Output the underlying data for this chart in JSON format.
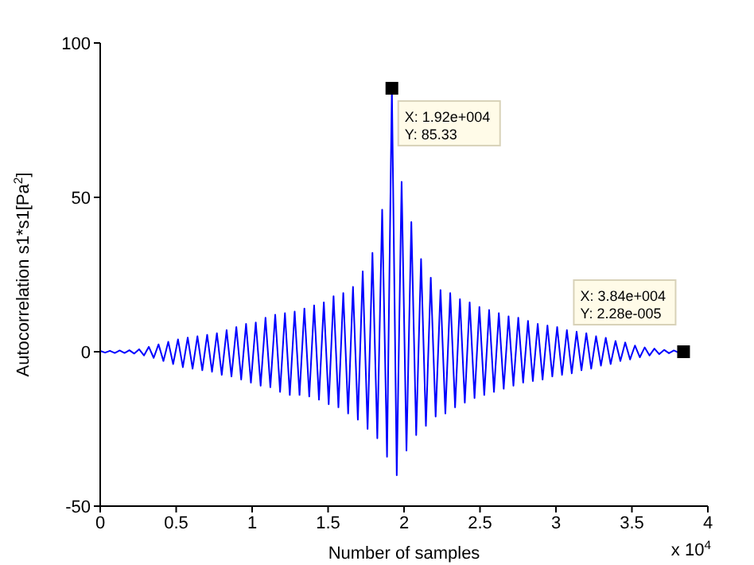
{
  "chart_data": {
    "type": "line",
    "xlabel": "Number of samples",
    "ylabel": "Autocorrelation s1*s1[Pa$^{2}$]",
    "xlim": [
      0,
      4
    ],
    "ylim": [
      -50,
      100
    ],
    "xticks": [
      0,
      0.5,
      1,
      1.5,
      2,
      2.5,
      3,
      3.5,
      4
    ],
    "yticks": [
      -50,
      0,
      50,
      100
    ],
    "grid": false,
    "legend": false,
    "marker": "none",
    "line_style": "solid",
    "annotations": [
      "x 10$^{4}$",
      {
        "text": "X: 1.92e+004\nY: 85.33",
        "x": 1.92,
        "y": 85.33
      },
      {
        "text": "X: 3.84e+004\nY: 2.28e-005",
        "x": 3.84,
        "y": 2.28e-05
      }
    ],
    "series": [
      {
        "color": "#0000ff",
        "x": [
          0,
          0.032,
          0.064,
          0.096,
          0.128,
          0.16,
          0.192,
          0.224,
          0.256,
          0.288,
          0.32,
          0.352,
          0.384,
          0.416,
          0.448,
          0.48,
          0.512,
          0.544,
          0.576,
          0.608,
          0.64,
          0.672,
          0.704,
          0.736,
          0.768,
          0.8,
          0.832,
          0.864,
          0.896,
          0.928,
          0.96,
          0.992,
          1.024,
          1.056,
          1.088,
          1.12,
          1.152,
          1.184,
          1.216,
          1.248,
          1.28,
          1.312,
          1.344,
          1.376,
          1.408,
          1.44,
          1.472,
          1.504,
          1.536,
          1.568,
          1.6,
          1.632,
          1.664,
          1.696,
          1.728,
          1.76,
          1.792,
          1.824,
          1.856,
          1.888,
          1.92,
          1.952,
          1.984,
          2.016,
          2.048,
          2.08,
          2.112,
          2.144,
          2.176,
          2.208,
          2.24,
          2.272,
          2.304,
          2.336,
          2.368,
          2.4,
          2.432,
          2.464,
          2.496,
          2.528,
          2.56,
          2.592,
          2.624,
          2.656,
          2.688,
          2.72,
          2.752,
          2.784,
          2.816,
          2.848,
          2.88,
          2.912,
          2.944,
          2.976,
          3.008,
          3.04,
          3.072,
          3.104,
          3.136,
          3.168,
          3.2,
          3.232,
          3.264,
          3.296,
          3.328,
          3.36,
          3.392,
          3.424,
          3.456,
          3.488,
          3.52,
          3.552,
          3.584,
          3.616,
          3.648,
          3.68,
          3.712,
          3.744,
          3.776,
          3.808,
          3.84
        ],
        "values": [
          0.3,
          -0.3,
          0.3,
          -0.4,
          0.4,
          -0.4,
          0.5,
          -0.6,
          0.8,
          -1.2,
          1.6,
          -2,
          2.4,
          -3,
          3.2,
          -4,
          4,
          -5,
          4.6,
          -5.5,
          5,
          -6,
          5.5,
          -6.5,
          6,
          -7.5,
          7,
          -8,
          8,
          -9,
          9,
          -10,
          9.5,
          -11,
          11,
          -11.5,
          12,
          -13,
          12.5,
          -14,
          13,
          -14,
          14,
          -14.5,
          15,
          -15.5,
          16,
          -17,
          18,
          -18,
          19,
          -20,
          21,
          -22,
          26,
          -25,
          32,
          -28,
          46,
          -34,
          85.33,
          -40,
          55,
          -32,
          42,
          -27,
          30,
          -24,
          24,
          -21,
          20,
          -20,
          19,
          -18,
          17,
          -16.5,
          16,
          -15,
          14.5,
          -14,
          13.5,
          -13,
          12.5,
          -12,
          11.5,
          -11,
          11,
          -10,
          10,
          -9.5,
          9,
          -9,
          8.5,
          -8,
          8,
          -7.5,
          7,
          -7,
          6.5,
          -6,
          6,
          -5.5,
          5,
          -4.5,
          4.5,
          -4,
          3.5,
          -3,
          3,
          -2.5,
          2,
          -1.8,
          1.4,
          -1.2,
          1,
          -0.8,
          0.6,
          -0.5,
          0.4,
          -0.3,
          0
        ]
      }
    ]
  }
}
